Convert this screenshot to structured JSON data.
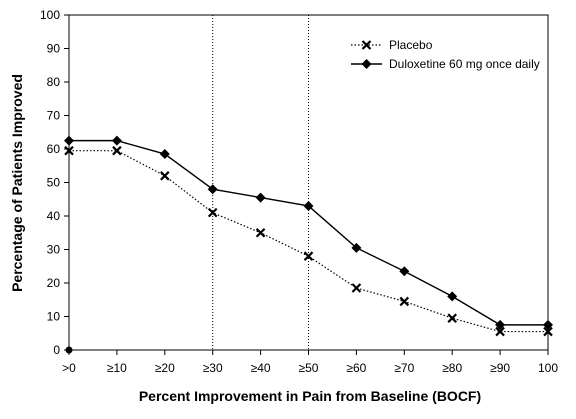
{
  "chart_data": {
    "type": "line",
    "categories": [
      ">0",
      "≥10",
      "≥20",
      "≥30",
      "≥40",
      "≥50",
      "≥60",
      "≥70",
      "≥80",
      "≥90",
      "100"
    ],
    "series": [
      {
        "name": "Placebo",
        "values": [
          59.5,
          59.5,
          52,
          41,
          35,
          28,
          18.5,
          14.5,
          9.5,
          5.5,
          5.5
        ],
        "color": "#000000",
        "style": "dotted",
        "marker": "x"
      },
      {
        "name": "Duloxetine 60 mg once daily",
        "values": [
          62.5,
          62.5,
          58.5,
          48,
          45.5,
          43,
          30.5,
          23.5,
          16,
          7.5,
          7.5
        ],
        "color": "#000000",
        "style": "solid",
        "marker": "diamond"
      }
    ],
    "extra_points": [
      {
        "category_index": 0,
        "value": 0,
        "marker": "circle"
      }
    ],
    "reference_lines": [
      {
        "category": "≥30",
        "style": "dotted"
      },
      {
        "category": "≥50",
        "style": "dotted"
      }
    ],
    "xlabel": "Percent Improvement in Pain from Baseline (BOCF)",
    "ylabel": "Percentage of Patients Improved",
    "ylim": [
      0,
      100
    ],
    "yticks": [
      0,
      10,
      20,
      30,
      40,
      50,
      60,
      70,
      80,
      90,
      100
    ],
    "grid": false,
    "legend_position": "top-right"
  }
}
